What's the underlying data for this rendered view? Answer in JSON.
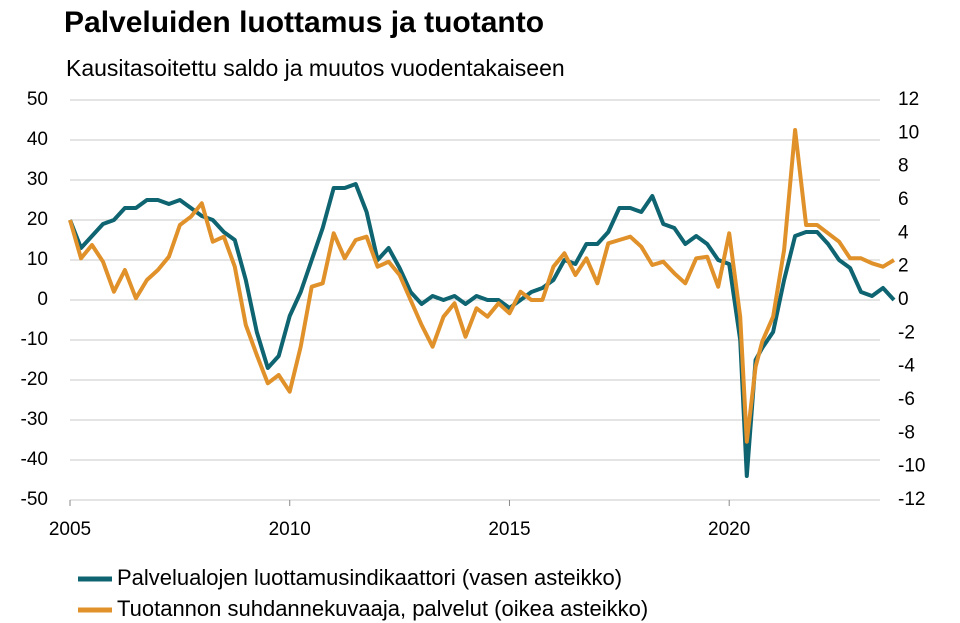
{
  "chart_data": {
    "type": "line",
    "title": "Palveluiden luottamus ja tuotanto",
    "subtitle": "Kausitasoitettu saldo ja muutos vuodentakaiseen",
    "x": [
      2005,
      2005.25,
      2005.5,
      2005.75,
      2006,
      2006.25,
      2006.5,
      2006.75,
      2007,
      2007.25,
      2007.5,
      2007.75,
      2008,
      2008.25,
      2008.5,
      2008.75,
      2009,
      2009.25,
      2009.5,
      2009.75,
      2010,
      2010.25,
      2010.5,
      2010.75,
      2011,
      2011.25,
      2011.5,
      2011.75,
      2012,
      2012.25,
      2012.5,
      2012.75,
      2013,
      2013.25,
      2013.5,
      2013.75,
      2014,
      2014.25,
      2014.5,
      2014.75,
      2015,
      2015.25,
      2015.5,
      2015.75,
      2016,
      2016.25,
      2016.5,
      2016.75,
      2017,
      2017.25,
      2017.5,
      2017.75,
      2018,
      2018.25,
      2018.5,
      2018.75,
      2019,
      2019.25,
      2019.5,
      2019.75,
      2020,
      2020.25,
      2020.4,
      2020.6,
      2020.75,
      2021,
      2021.25,
      2021.5,
      2021.75,
      2022,
      2022.25,
      2022.5,
      2022.75,
      2023,
      2023.25,
      2023.5,
      2023.75
    ],
    "series": [
      {
        "name": "Palvelualojen luottamusindikaattori (vasen asteikko)",
        "color": "#0e6470",
        "axis": "y",
        "values": [
          20,
          13,
          16,
          19,
          20,
          23,
          23,
          25,
          25,
          24,
          25,
          23,
          21,
          20,
          17,
          15,
          5,
          -8,
          -17,
          -14,
          -4,
          2,
          10,
          18,
          28,
          28,
          29,
          22,
          10,
          13,
          8,
          2,
          -1,
          1,
          0,
          1,
          -1,
          1,
          0,
          0,
          -2,
          0,
          2,
          3,
          5,
          10,
          9,
          14,
          14,
          17,
          23,
          23,
          22,
          26,
          19,
          18,
          14,
          16,
          14,
          10,
          9,
          -10,
          -44,
          -15,
          -12,
          -8,
          5,
          16,
          17,
          17,
          14,
          10,
          8,
          2,
          1,
          3,
          0
        ]
      },
      {
        "name": "Tuotannon suhdannekuvaaja, palvelut (oikea asteikko)",
        "color": "#e0912a",
        "axis": "y2",
        "values": [
          4.8,
          2.5,
          3.3,
          2.3,
          0.5,
          1.8,
          0.1,
          1.2,
          1.8,
          2.6,
          4.5,
          5.0,
          5.8,
          3.5,
          3.8,
          2.0,
          -1.5,
          -3.3,
          -5.0,
          -4.5,
          -5.5,
          -2.8,
          0.8,
          1.0,
          4.0,
          2.5,
          3.6,
          3.8,
          2.0,
          2.3,
          1.5,
          0.0,
          -1.5,
          -2.8,
          -1.0,
          -0.2,
          -2.2,
          -0.5,
          -1.0,
          -0.2,
          -0.8,
          0.5,
          0.0,
          0.0,
          2.0,
          2.8,
          1.5,
          2.5,
          1.0,
          3.4,
          3.6,
          3.8,
          3.2,
          2.1,
          2.3,
          1.6,
          1.0,
          2.5,
          2.6,
          0.8,
          4.0,
          -1.0,
          -8.5,
          -4.0,
          -2.5,
          -1.0,
          3.0,
          10.2,
          4.5,
          4.5,
          4.0,
          3.5,
          2.5,
          2.5,
          2.2,
          2.0,
          2.4
        ]
      }
    ],
    "xlim": [
      2005,
      2023.75
    ],
    "xticks": [
      2005,
      2010,
      2015,
      2020
    ],
    "ylim": [
      -50,
      50
    ],
    "yticks": [
      -50,
      -40,
      -30,
      -20,
      -10,
      0,
      10,
      20,
      30,
      40,
      50
    ],
    "y2lim": [
      -12,
      12
    ],
    "y2ticks": [
      -12,
      -10,
      -8,
      -6,
      -4,
      -2,
      0,
      2,
      4,
      6,
      8,
      10,
      12
    ],
    "grid": true
  }
}
